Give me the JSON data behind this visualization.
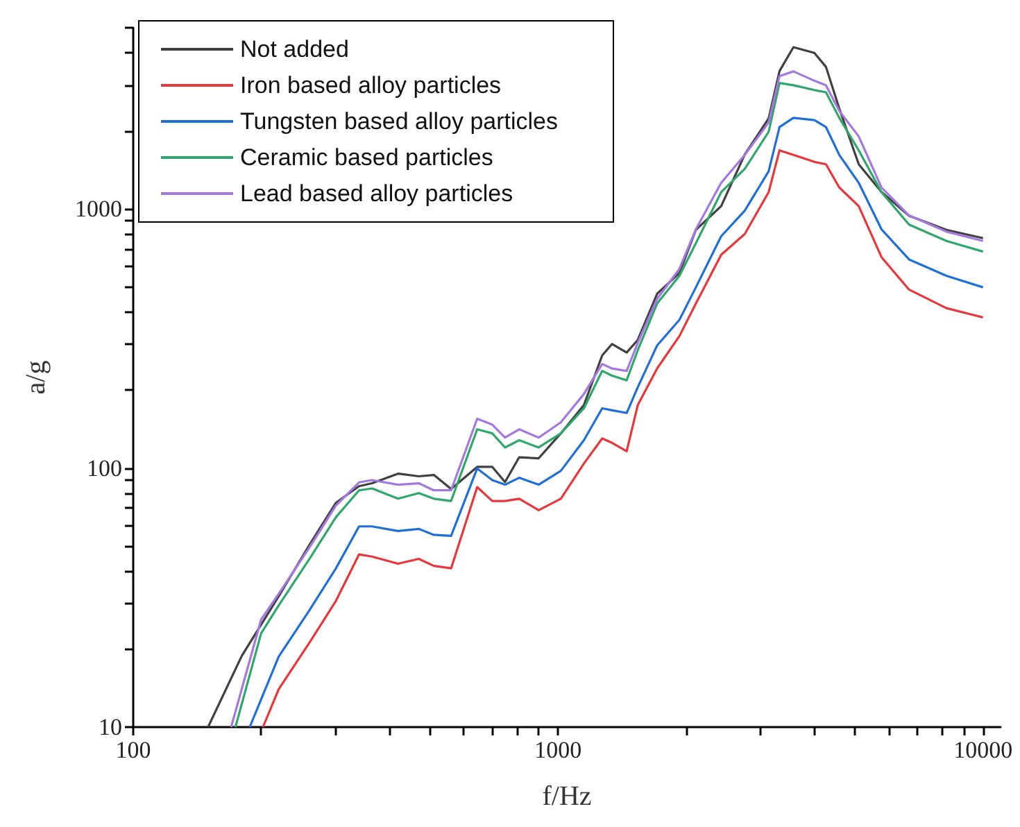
{
  "chart_data": {
    "type": "line",
    "xlabel": "f/Hz",
    "ylabel": "a/g",
    "log": "xy",
    "grid": false,
    "legend": "top left",
    "line_style": "solid",
    "xlim": [
      100,
      11000
    ],
    "xticks": [
      100,
      {
        "value": 200,
        "label": null
      },
      {
        "value": 300,
        "label": null
      },
      {
        "value": 400,
        "label": null
      },
      {
        "value": 500,
        "label": null
      },
      {
        "value": 600,
        "label": null
      },
      {
        "value": 700,
        "label": null
      },
      {
        "value": 800,
        "label": null
      },
      {
        "value": 900,
        "label": null
      },
      1000,
      {
        "value": 2000,
        "label": null
      },
      {
        "value": 3000,
        "label": null
      },
      {
        "value": 4000,
        "label": null
      },
      {
        "value": 5000,
        "label": null
      },
      {
        "value": 6000,
        "label": null
      },
      {
        "value": 7000,
        "label": null
      },
      {
        "value": 8000,
        "label": null
      },
      {
        "value": 9000,
        "label": null
      },
      10000
    ],
    "ylim": [
      10,
      5000
    ],
    "yticks": [
      10,
      {
        "value": 20,
        "label": null
      },
      {
        "value": 30,
        "label": null
      },
      {
        "value": 40,
        "label": null
      },
      {
        "value": 50,
        "label": null
      },
      {
        "value": 60,
        "label": null
      },
      {
        "value": 70,
        "label": null
      },
      {
        "value": 80,
        "label": null
      },
      {
        "value": 90,
        "label": null
      },
      100,
      {
        "value": 200,
        "label": null
      },
      {
        "value": 300,
        "label": null
      },
      {
        "value": 400,
        "label": null
      },
      {
        "value": 500,
        "label": null
      },
      {
        "value": 600,
        "label": null
      },
      {
        "value": 700,
        "label": null
      },
      {
        "value": 800,
        "label": null
      },
      {
        "value": 900,
        "label": null
      },
      1000,
      {
        "value": 2000,
        "label": null
      },
      {
        "value": 3000,
        "label": null
      },
      {
        "value": 4000,
        "label": null
      },
      {
        "value": 5000,
        "label": null
      }
    ],
    "series": [
      {
        "name": "Not added",
        "color": "#404040",
        "x": [
          150,
          180,
          220,
          260,
          300,
          340,
          365,
          420,
          470,
          510,
          560,
          645,
          700,
          750,
          810,
          900,
          1015,
          1150,
          1270,
          1340,
          1450,
          1540,
          1710,
          1930,
          2110,
          2420,
          2750,
          3130,
          3320,
          3580,
          4010,
          4270,
          4590,
          5100,
          5770,
          6700,
          8200,
          10000
        ],
        "values": [
          10,
          18.8,
          32,
          50.6,
          73.4,
          85.1,
          87.3,
          95.1,
          92.9,
          94,
          83,
          101,
          101,
          88.3,
          110,
          109,
          136,
          175,
          272,
          301,
          279,
          312,
          470,
          566,
          830,
          1025,
          1622,
          2235,
          3404,
          4206,
          4000,
          3532,
          2438,
          1486,
          1161,
          940,
          830,
          771
        ]
      },
      {
        "name": "Iron based alloy particles",
        "color": "#e8373a",
        "x": [
          202,
          220,
          260,
          300,
          340,
          365,
          420,
          470,
          510,
          560,
          645,
          700,
          750,
          810,
          900,
          1015,
          1150,
          1270,
          1340,
          1450,
          1540,
          1710,
          1930,
          2110,
          2420,
          2750,
          3130,
          3320,
          3580,
          4010,
          4270,
          4590,
          5100,
          5770,
          6700,
          8200,
          10000
        ],
        "values": [
          10,
          14,
          21.2,
          30.7,
          46.4,
          45.5,
          42.7,
          44.6,
          41.9,
          41,
          84.4,
          74.6,
          74.6,
          76.1,
          68.7,
          76.1,
          104,
          130,
          125,
          116,
          175,
          242,
          323,
          431,
          665,
          800,
          1160,
          1682,
          1615,
          1518,
          1486,
          1209,
          1025,
          651,
          488,
          414,
          381
        ]
      },
      {
        "name": "Tungsten based alloy particles",
        "color": "#1f6fd6",
        "x": [
          188,
          220,
          260,
          300,
          340,
          365,
          420,
          470,
          510,
          560,
          645,
          700,
          750,
          810,
          900,
          1015,
          1150,
          1270,
          1340,
          1450,
          1540,
          1710,
          1930,
          2110,
          2420,
          2750,
          3130,
          3320,
          3580,
          4010,
          4270,
          4590,
          5100,
          5770,
          6700,
          8200,
          10000
        ],
        "values": [
          10,
          18.7,
          28.3,
          41,
          59.5,
          59.5,
          57.1,
          58.2,
          55.2,
          54.7,
          99.6,
          89.8,
          86.2,
          91.7,
          86.2,
          97.5,
          128,
          170,
          167,
          163,
          205,
          297,
          373,
          498,
          784,
          984,
          1397,
          2068,
          2245,
          2200,
          2068,
          1615,
          1260,
          834,
          638,
          552,
          498
        ]
      },
      {
        "name": "Ceramic based particles",
        "color": "#2ea86a",
        "x": [
          174,
          200,
          220,
          260,
          300,
          340,
          365,
          420,
          470,
          510,
          560,
          645,
          700,
          750,
          810,
          900,
          1015,
          1150,
          1270,
          1340,
          1450,
          1540,
          1710,
          1930,
          2110,
          2420,
          2750,
          3130,
          3320,
          3580,
          4010,
          4270,
          4590,
          5100,
          5770,
          6700,
          8200,
          10000
        ],
        "values": [
          10,
          23,
          29.5,
          44.6,
          64.6,
          82,
          83.4,
          76.1,
          80,
          76.1,
          74.6,
          141,
          136,
          120,
          128,
          120,
          136,
          170,
          237,
          227,
          218,
          285,
          431,
          552,
          737,
          1160,
          1427,
          1983,
          3059,
          2999,
          2874,
          2818,
          2245,
          1682,
          1160,
          869,
          752,
          684
        ]
      },
      {
        "name": "Lead based alloy particles",
        "color": "#a578e0",
        "x": [
          170,
          200,
          220,
          260,
          300,
          340,
          365,
          420,
          470,
          510,
          560,
          645,
          700,
          750,
          810,
          900,
          1015,
          1150,
          1270,
          1340,
          1450,
          1540,
          1710,
          1930,
          2110,
          2420,
          2750,
          3130,
          3320,
          3580,
          4010,
          4270,
          4590,
          5100,
          5770,
          6700,
          8200,
          10000
        ],
        "values": [
          10,
          26,
          32.7,
          49.4,
          71.6,
          88,
          89.8,
          86.2,
          87.3,
          82,
          82,
          155,
          147,
          131,
          141,
          131,
          150,
          193,
          252,
          242,
          237,
          304,
          449,
          587,
          834,
          1260,
          1615,
          2154,
          3254,
          3393,
          3123,
          2999,
          2388,
          1904,
          1209,
          943,
          817,
          752
        ]
      }
    ]
  }
}
